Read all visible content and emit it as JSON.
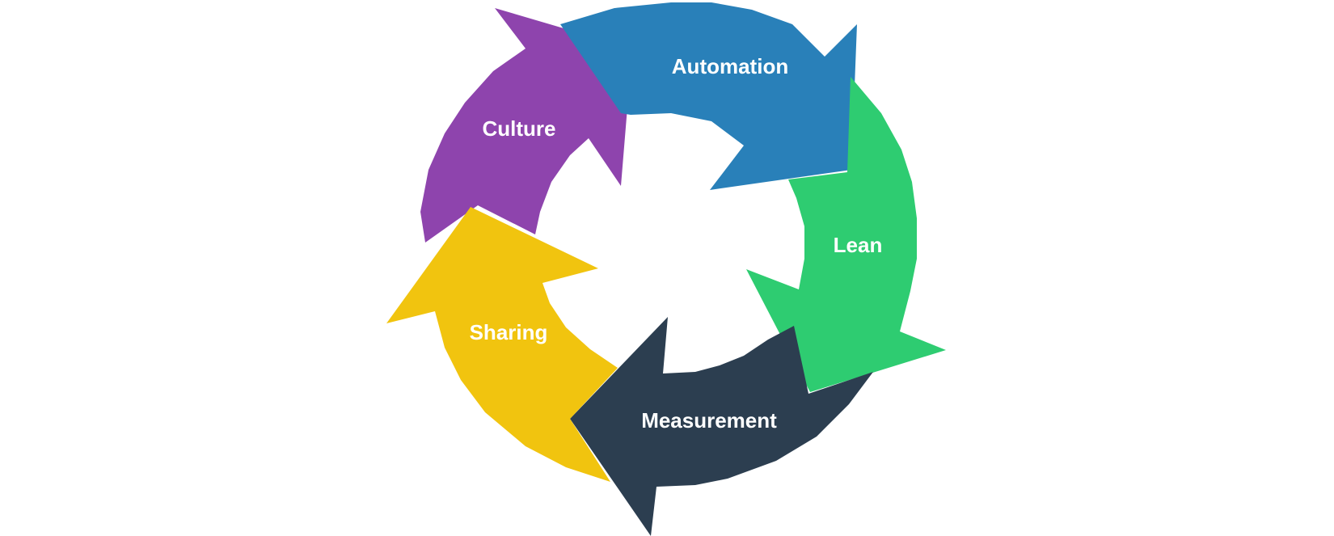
{
  "diagram": {
    "segments": [
      {
        "label": "Automation",
        "color": "#2980b9"
      },
      {
        "label": "Lean",
        "color": "#2ecc71"
      },
      {
        "label": "Measurement",
        "color": "#2c3e50"
      },
      {
        "label": "Sharing",
        "color": "#f1c40f"
      },
      {
        "label": "Culture",
        "color": "#8e44ad"
      }
    ]
  }
}
